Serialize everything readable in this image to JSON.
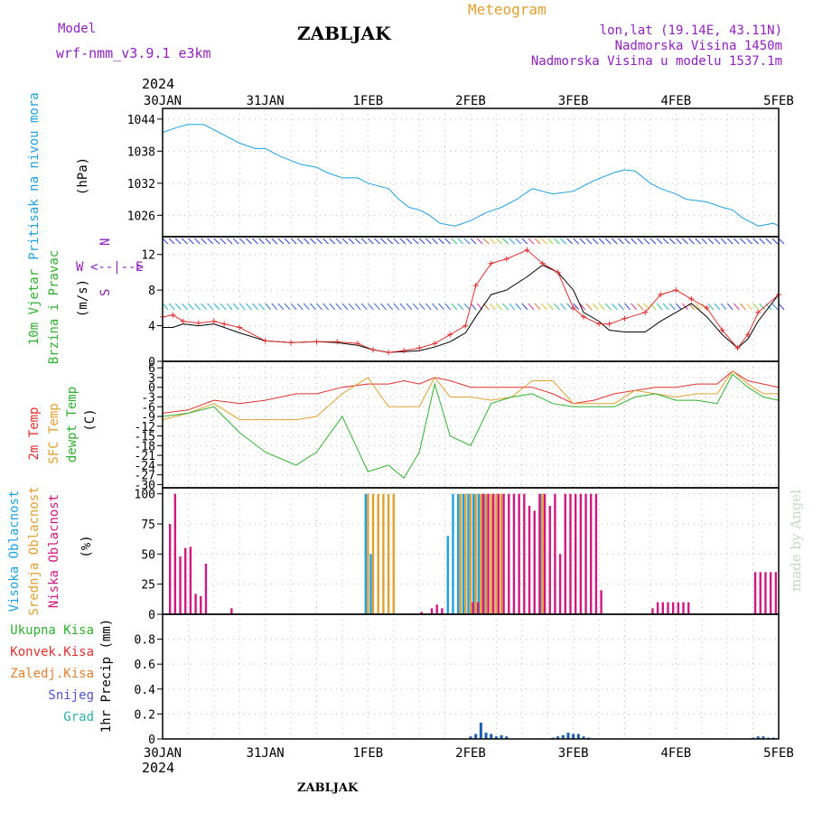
{
  "header": {
    "model_label": "Model",
    "model_name": "wrf-nmm_v3.9.1  e3km",
    "title": "ZABLJAK",
    "meteogram_label": "Meteogram",
    "lonlat": "lon,lat (19.14E, 43.11N)",
    "elevation": "Nadmorska Visina 1450m",
    "model_elevation": "Nadmorska Visina u modelu 1537.1m",
    "footer_title": "ZABLJAK",
    "credit": "made by Angel"
  },
  "time_axis": {
    "year": "2024",
    "labels": [
      "30JAN",
      "31JAN",
      "1FEB",
      "2FEB",
      "3FEB",
      "4FEB",
      "5FEB"
    ]
  },
  "colors": {
    "pressure": "#1fa0e0",
    "wind_speed_line": "#000000",
    "gust_line": "#e03030",
    "temp_2m": "#e03030",
    "temp_sfc": "#e0a030",
    "dewpoint": "#30b030",
    "cloud_high": "#1fa0e0",
    "cloud_mid": "#e0a030",
    "cloud_low": "#d01880",
    "precip_total": "#30b030",
    "precip_conv": "#e03030",
    "precip_frozen": "#e08030",
    "precip_snow": "#5050d0",
    "precip_hail": "#30b0b0",
    "label_purple": "#9020c0",
    "meteogram_orange": "#e0a030"
  },
  "chart_data": [
    {
      "type": "line",
      "panel": "pressure",
      "ylabel_left": "Pritisak na nivou mora",
      "unit": "(hPa)",
      "yticks": [
        "1044",
        "1038",
        "1032",
        "1026"
      ],
      "ylim": [
        1022,
        1046
      ],
      "x_days": [
        0,
        0.15,
        0.25,
        0.4,
        0.6,
        0.75,
        0.9,
        1.0,
        1.15,
        1.35,
        1.5,
        1.6,
        1.75,
        1.9,
        2.0,
        2.2,
        2.3,
        2.4,
        2.5,
        2.6,
        2.7,
        2.85,
        3.0,
        3.15,
        3.3,
        3.45,
        3.6,
        3.8,
        4.0,
        4.2,
        4.4,
        4.5,
        4.6,
        4.75,
        4.85,
        5.0,
        5.1,
        5.3,
        5.45,
        5.55,
        5.65,
        5.8,
        5.95,
        6.0
      ],
      "series": [
        {
          "values": [
            1041.5,
            1042.5,
            1043,
            1043,
            1041,
            1039.5,
            1038.5,
            1038.5,
            1037,
            1035.5,
            1035,
            1034,
            1033,
            1033,
            1032,
            1031,
            1029,
            1027.5,
            1027,
            1026,
            1024.5,
            1024,
            1025,
            1026.5,
            1027.5,
            1029,
            1031,
            1030,
            1030.5,
            1032.5,
            1034,
            1034.5,
            1034.3,
            1032,
            1031,
            1030,
            1029,
            1028.5,
            1027.5,
            1027,
            1025.5,
            1024,
            1024.5,
            1024
          ]
        }
      ]
    },
    {
      "type": "line",
      "panel": "wind",
      "ylabel_left": [
        "10m Vjetar",
        "Brzina i Pravac"
      ],
      "unit": "(m/s)",
      "compass": {
        "n": "N",
        "e": "E",
        "w": "W",
        "s": "S",
        "cross": "<--|-->"
      },
      "yticks": [
        "12",
        "8",
        "4",
        "0"
      ],
      "ylim": [
        0,
        14
      ],
      "x_days": [
        0,
        0.1,
        0.2,
        0.35,
        0.5,
        0.6,
        0.75,
        1.0,
        1.25,
        1.5,
        1.7,
        1.9,
        2.05,
        2.2,
        2.35,
        2.5,
        2.65,
        2.8,
        2.95,
        3.05,
        3.2,
        3.35,
        3.55,
        3.7,
        3.85,
        4.0,
        4.1,
        4.25,
        4.35,
        4.5,
        4.7,
        4.85,
        5.0,
        5.15,
        5.3,
        5.45,
        5.6,
        5.7,
        5.8,
        6.0
      ],
      "series": [
        {
          "name": "speed",
          "values": [
            3.8,
            3.8,
            4.2,
            4.0,
            4.2,
            3.8,
            3.2,
            2.3,
            2.1,
            2.2,
            2.1,
            1.8,
            1.3,
            1.0,
            1.1,
            1.2,
            1.6,
            2.2,
            3.2,
            5.0,
            7.5,
            8.0,
            9.5,
            10.8,
            10.0,
            8.0,
            5.5,
            4.5,
            3.5,
            3.3,
            3.3,
            4.5,
            5.5,
            6.5,
            5.0,
            3.0,
            1.5,
            2.5,
            4.5,
            7.5
          ]
        },
        {
          "name": "gusts",
          "values": [
            5.0,
            5.2,
            4.5,
            4.3,
            4.5,
            4.2,
            3.8,
            2.3,
            2.1,
            2.2,
            2.2,
            2.0,
            1.3,
            1.0,
            1.2,
            1.5,
            2.0,
            3.0,
            4.0,
            8.5,
            11.0,
            11.5,
            12.5,
            11.0,
            10.0,
            6.0,
            5.0,
            4.2,
            4.2,
            4.8,
            5.5,
            7.5,
            8.0,
            7.0,
            6.0,
            3.5,
            1.5,
            3.0,
            5.5,
            7.5
          ]
        }
      ]
    },
    {
      "type": "line",
      "panel": "temperature",
      "ylabel_left": [
        "2m Temp",
        "SFC Temp",
        "dewpt Temp"
      ],
      "unit": "(C)",
      "yticks": [
        "6",
        "3",
        "0",
        "-3",
        "-6",
        "-9",
        "-12",
        "-15",
        "-18",
        "-21",
        "-24",
        "-27",
        "-30"
      ],
      "ylim": [
        -31,
        8
      ],
      "x_days": [
        0,
        0.25,
        0.5,
        0.75,
        1.0,
        1.3,
        1.5,
        1.75,
        2.0,
        2.2,
        2.35,
        2.5,
        2.65,
        2.8,
        3.0,
        3.2,
        3.4,
        3.6,
        3.8,
        4.0,
        4.2,
        4.4,
        4.6,
        4.8,
        5.0,
        5.2,
        5.4,
        5.55,
        5.7,
        5.85,
        6.0
      ],
      "series": [
        {
          "name": "2m",
          "values": [
            -8,
            -7,
            -4,
            -5,
            -4,
            -2,
            -2,
            0,
            1,
            1,
            2,
            1,
            3,
            2,
            0,
            0,
            0,
            0,
            -2,
            -5,
            -4,
            -2,
            -1,
            0,
            0,
            1,
            1,
            5,
            2,
            1,
            0
          ]
        },
        {
          "name": "sfc",
          "values": [
            -10,
            -8,
            -5,
            -10,
            -10,
            -10,
            -9,
            -2,
            3,
            -6,
            -6,
            -6,
            3,
            -3,
            -3,
            -4,
            -3,
            2,
            2,
            -5,
            -5,
            -5,
            -1,
            -2,
            -3,
            -2,
            -2,
            5,
            1,
            -2,
            -2
          ]
        },
        {
          "name": "dewpt",
          "values": [
            -9,
            -8,
            -6,
            -14,
            -20,
            -24,
            -20,
            -9,
            -26,
            -24,
            -28,
            -20,
            1,
            -15,
            -18,
            -5,
            -3,
            -2,
            -5,
            -6,
            -6,
            -6,
            -3,
            -2,
            -4,
            -4,
            -5,
            4,
            0,
            -3,
            -4
          ]
        }
      ]
    },
    {
      "type": "bar",
      "panel": "clouds",
      "ylabel_left": [
        "Visoka Oblacnost",
        "Srednja Oblacnost",
        "Niska Oblacnost"
      ],
      "unit": "(%)",
      "yticks": [
        "100",
        "75",
        "50",
        "25",
        "0"
      ],
      "ylim": [
        0,
        105
      ],
      "x_days": [
        0.05,
        0.1,
        0.15,
        0.2,
        0.25,
        0.3,
        0.35,
        0.4,
        0.65,
        2.0,
        2.05,
        2.1,
        2.15,
        2.2,
        2.25,
        2.5,
        2.6,
        2.65,
        2.7,
        2.75,
        2.8,
        2.85,
        2.9,
        2.95,
        3.0,
        3.05,
        3.1,
        3.15,
        3.2,
        3.25,
        3.3,
        3.35,
        3.4,
        3.45,
        3.5,
        3.55,
        3.6,
        3.65,
        3.7,
        3.75,
        3.8,
        3.85,
        3.9,
        3.95,
        4.0,
        4.05,
        4.1,
        4.15,
        4.2,
        4.25,
        4.3,
        4.35,
        4.4,
        4.45,
        4.5,
        4.55,
        4.6,
        4.65,
        4.75,
        4.8,
        4.85,
        4.9,
        4.95,
        5.0,
        5.05,
        5.1,
        5.75,
        5.8,
        5.85,
        5.9,
        5.95
      ],
      "series": [
        {
          "name": "high",
          "values": [
            0,
            0,
            0,
            0,
            0,
            0,
            0,
            0,
            0,
            100,
            50,
            0,
            0,
            0,
            0,
            0,
            0,
            0,
            0,
            0,
            65,
            100,
            100,
            100,
            100,
            100,
            100,
            100,
            0,
            0,
            0,
            0,
            0,
            0,
            0,
            0,
            0,
            0,
            100,
            0,
            0,
            0,
            0,
            0,
            0,
            0,
            0,
            0,
            0,
            0,
            0,
            0,
            0,
            0,
            0,
            0,
            0,
            0,
            0,
            0,
            0,
            0,
            0,
            0,
            0,
            0,
            0,
            0,
            0,
            0,
            0
          ]
        },
        {
          "name": "mid",
          "values": [
            0,
            0,
            0,
            0,
            0,
            0,
            0,
            0,
            0,
            100,
            100,
            100,
            100,
            100,
            100,
            0,
            0,
            0,
            0,
            0,
            0,
            0,
            100,
            100,
            100,
            100,
            100,
            100,
            100,
            100,
            100,
            0,
            0,
            0,
            0,
            0,
            0,
            0,
            100,
            0,
            0,
            0,
            0,
            0,
            0,
            0,
            0,
            0,
            0,
            0,
            0,
            0,
            0,
            0,
            0,
            0,
            0,
            0,
            0,
            0,
            0,
            0,
            0,
            0,
            0,
            0,
            0,
            0,
            0,
            0,
            0
          ]
        },
        {
          "name": "low",
          "values": [
            75,
            100,
            48,
            55,
            56,
            17,
            15,
            42,
            5,
            0,
            0,
            0,
            0,
            0,
            0,
            2,
            5,
            8,
            5,
            0,
            0,
            0,
            0,
            0,
            10,
            10,
            100,
            100,
            100,
            100,
            100,
            100,
            100,
            100,
            100,
            90,
            86,
            100,
            100,
            90,
            100,
            50,
            100,
            100,
            100,
            100,
            100,
            100,
            100,
            20,
            0,
            0,
            0,
            0,
            0,
            0,
            0,
            0,
            5,
            10,
            10,
            10,
            10,
            10,
            10,
            10,
            35,
            35,
            35,
            35,
            35
          ]
        }
      ]
    },
    {
      "type": "bar",
      "panel": "precipitation",
      "ylabel_left": [
        "Ukupna Kisa",
        "Konvek.Kisa",
        "Zaledj.Kisa",
        "Snijeg",
        "Grad"
      ],
      "unit": "1hr Precip (mm)",
      "yticks": [
        "0.8",
        "0.6",
        "0.4",
        "0.2",
        "0"
      ],
      "ylim": [
        0,
        1.0
      ],
      "x_days": [
        3.0,
        3.05,
        3.1,
        3.15,
        3.2,
        3.25,
        3.3,
        3.35,
        3.8,
        3.85,
        3.9,
        3.95,
        4.0,
        4.05,
        4.1,
        4.15,
        5.75,
        5.8,
        5.85,
        5.9,
        5.95
      ],
      "series": [
        {
          "name": "snow",
          "values": [
            0.02,
            0.04,
            0.13,
            0.05,
            0.04,
            0.02,
            0.03,
            0.02,
            0.01,
            0.02,
            0.03,
            0.05,
            0.04,
            0.04,
            0.02,
            0.01,
            0.01,
            0.02,
            0.02,
            0.01,
            0.01
          ]
        }
      ]
    }
  ]
}
